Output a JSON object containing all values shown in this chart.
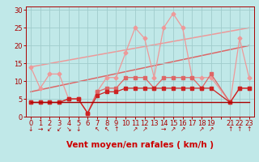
{
  "bg_color": "#c0e8e8",
  "grid_color": "#a0cccc",
  "xlabel": "Vent moyen/en rafales ( km/h )",
  "xlabel_color": "#cc0000",
  "xlim": [
    -0.5,
    23.5
  ],
  "ylim": [
    0,
    31
  ],
  "yticks": [
    0,
    5,
    10,
    15,
    20,
    25,
    30
  ],
  "xticks": [
    0,
    1,
    2,
    3,
    4,
    5,
    6,
    7,
    8,
    9,
    10,
    11,
    12,
    13,
    14,
    15,
    16,
    17,
    18,
    19,
    21,
    22,
    23
  ],
  "line_flat_x": [
    0,
    1,
    2,
    3,
    4,
    5,
    6,
    7,
    8,
    9,
    10,
    11,
    12,
    13,
    14,
    15,
    16,
    17,
    18,
    19,
    21,
    22,
    23
  ],
  "line_flat_y": [
    4,
    4,
    4,
    4,
    4,
    4,
    4,
    4,
    4,
    4,
    4,
    4,
    4,
    4,
    4,
    4,
    4,
    4,
    4,
    4,
    4,
    4,
    4
  ],
  "line_avg_x": [
    0,
    1,
    2,
    3,
    4,
    5,
    6,
    7,
    8,
    9,
    10,
    11,
    12,
    13,
    14,
    15,
    16,
    17,
    18,
    19,
    21,
    22,
    23
  ],
  "line_avg_y": [
    4,
    4,
    4,
    4,
    5,
    5,
    1,
    6,
    7,
    7,
    8,
    8,
    8,
    8,
    8,
    8,
    8,
    8,
    8,
    8,
    4,
    8,
    8
  ],
  "line_gust_x": [
    0,
    1,
    2,
    3,
    4,
    5,
    6,
    7,
    8,
    9,
    10,
    11,
    12,
    13,
    14,
    15,
    16,
    17,
    18,
    19,
    21,
    22,
    23
  ],
  "line_gust_y": [
    4,
    4,
    4,
    4,
    5,
    5,
    1,
    7,
    8,
    8,
    11,
    11,
    11,
    8,
    11,
    11,
    11,
    11,
    8,
    12,
    4,
    8,
    8
  ],
  "line_max_x": [
    0,
    1,
    2,
    3,
    4,
    5,
    6,
    7,
    8,
    9,
    10,
    11,
    12,
    13,
    14,
    15,
    16,
    17,
    18,
    19,
    21,
    22,
    23
  ],
  "line_max_y": [
    14,
    8,
    12,
    12,
    5,
    5,
    1,
    7,
    11,
    11,
    18,
    25,
    22,
    11,
    25,
    29,
    25,
    11,
    11,
    11,
    4,
    22,
    11
  ],
  "trend1_x": [
    0,
    23
  ],
  "trend1_y": [
    7,
    20
  ],
  "trend2_x": [
    0,
    23
  ],
  "trend2_y": [
    14,
    25
  ],
  "color_dark": "#aa0000",
  "color_mid": "#cc2222",
  "color_light": "#dd6666",
  "color_vlight": "#ee9999",
  "wind_arrows": [
    "↓",
    "→",
    "↙",
    "↙",
    "↘",
    "↓",
    "",
    "↖",
    "↖",
    "↑",
    "",
    "↗",
    "↗",
    "",
    "→",
    "↗",
    "↗",
    "",
    "↗",
    "↗",
    "",
    "↑",
    "↑",
    "↑"
  ]
}
